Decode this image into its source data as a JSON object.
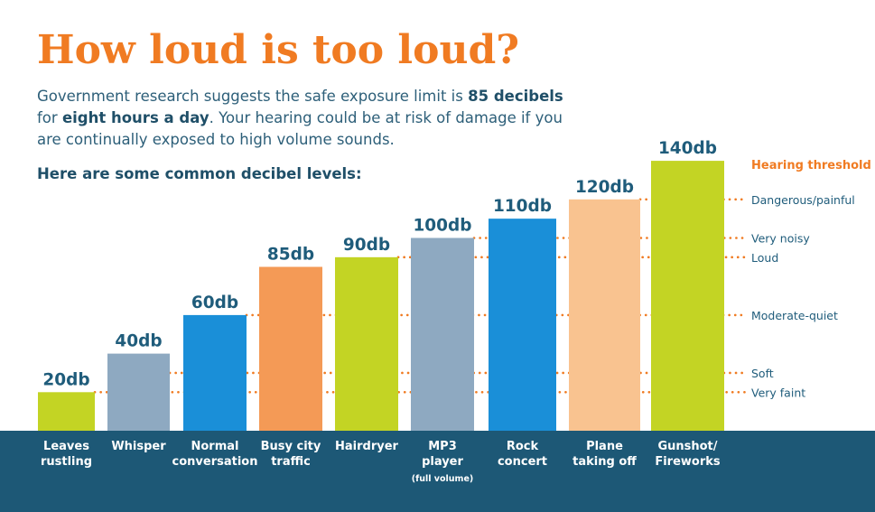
{
  "header": {
    "title": "How loud is too loud?",
    "intro_1": "Government research suggests the safe exposure limit is ",
    "intro_bold_1": "85 decibels",
    "intro_2": " for ",
    "intro_bold_2": "eight hours a day",
    "intro_3": ". Your hearing could be at risk of damage if you are continually exposed to high volume sounds.",
    "subhead": "Here are some common decibel levels:"
  },
  "threshold_title": "Hearing threshold",
  "colors": {
    "lime": "#c3d424",
    "gray_blue": "#8ea9c1",
    "blue": "#1a8fd8",
    "orange": "#f49a56",
    "peach": "#f9c390",
    "footer": "#1d5876",
    "dots": "#f07b22"
  },
  "chart_data": {
    "type": "bar",
    "unit": "db",
    "categories": [
      {
        "lines": [
          "Leaves",
          "rustling"
        ],
        "note": ""
      },
      {
        "lines": [
          "Whisper"
        ],
        "note": ""
      },
      {
        "lines": [
          "Normal",
          "conversation"
        ],
        "note": ""
      },
      {
        "lines": [
          "Busy city",
          "traffic"
        ],
        "note": ""
      },
      {
        "lines": [
          "Hairdryer"
        ],
        "note": ""
      },
      {
        "lines": [
          "MP3",
          "player"
        ],
        "note": "(full volume)"
      },
      {
        "lines": [
          "Rock",
          "concert"
        ],
        "note": ""
      },
      {
        "lines": [
          "Plane",
          "taking off"
        ],
        "note": ""
      },
      {
        "lines": [
          "Gunshot/",
          "Fireworks"
        ],
        "note": ""
      }
    ],
    "values": [
      20,
      40,
      60,
      85,
      90,
      100,
      110,
      120,
      140
    ],
    "value_labels": [
      "20db",
      "40db",
      "60db",
      "85db",
      "90db",
      "100db",
      "110db",
      "120db",
      "140db"
    ],
    "bar_colors": [
      "#c3d424",
      "#8ea9c1",
      "#1a8fd8",
      "#f49a56",
      "#c3d424",
      "#8ea9c1",
      "#1a8fd8",
      "#f9c390",
      "#c3d424"
    ],
    "thresholds": [
      {
        "label": "Dangerous/painful",
        "value": 120
      },
      {
        "label": "Very noisy",
        "value": 100
      },
      {
        "label": "Loud",
        "value": 90
      },
      {
        "label": "Moderate-quiet",
        "value": 60
      },
      {
        "label": "Soft",
        "value": 30
      },
      {
        "label": "Very faint",
        "value": 20
      }
    ],
    "ylim": [
      0,
      140
    ],
    "grid": false
  }
}
